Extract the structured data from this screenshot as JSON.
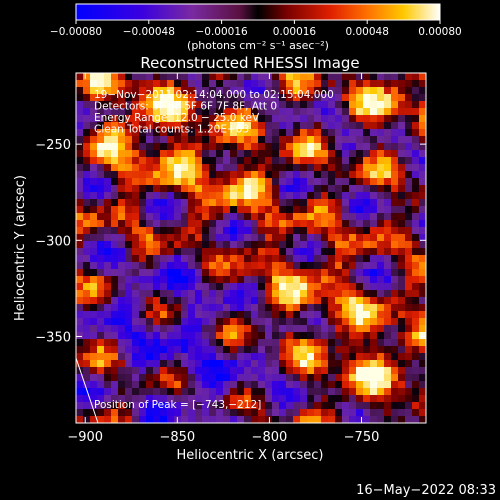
{
  "chart_data": {
    "type": "heatmap",
    "title": "Reconstructed RHESSI Image",
    "xlabel": "Heliocentric X (arcsec)",
    "ylabel": "Heliocentric Y (arcsec)",
    "xlim": [
      -905,
      -715
    ],
    "ylim": [
      -395,
      -213
    ],
    "x_ticks": [
      -900,
      -850,
      -800,
      -750
    ],
    "x_tick_labels": [
      "−900",
      "−850",
      "−800",
      "−750"
    ],
    "y_ticks": [
      -250,
      -300,
      -350
    ],
    "y_tick_labels": [
      "−250",
      "−300",
      "−350"
    ],
    "colorbar": {
      "min": -0.0008,
      "max": 0.0008,
      "ticks": [
        -0.0008,
        -0.00048,
        -0.00016,
        0.00016,
        0.00048,
        0.0008
      ],
      "tick_labels": [
        "−0.00080",
        "−0.00048",
        "−0.00016",
        "0.00016",
        "0.00048",
        "0.00080"
      ],
      "unit_label": "(photons cm⁻² s⁻¹ asec⁻²)"
    },
    "annotations": [
      "19−Nov−2011 02:14:04.000 to 02:15:04.000",
      "Detectors: 3F 4F 5F 6F 7F 8F, Att 0",
      "Energy Range: 12.0 − 25.0 keV",
      "Clean    Total counts: 1.20E+03"
    ],
    "peak_label": "Position of Peak = [−743,−212]",
    "peak_position": [
      -743,
      -212
    ],
    "grid": false
  },
  "footer": {
    "date": "16−May−2022 08:33"
  },
  "colors": {
    "background": "#000000",
    "text": "#ffffff"
  }
}
